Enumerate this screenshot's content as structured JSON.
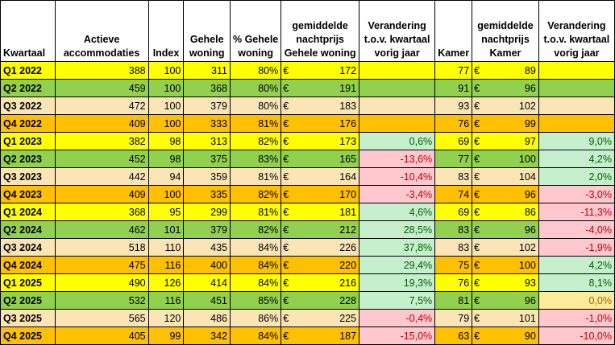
{
  "header": {
    "kwartaal": "Kwartaal",
    "actieve": "Actieve accommodaties",
    "index": "Index",
    "gehele": "Gehele woning",
    "pct_gehele": "% Gehele woning",
    "prijs_gehele": "gemiddelde nachtprijs Gehele woning",
    "verandering1": "Verandering t.o.v. kwartaal vorig jaar",
    "kamer": "Kamer",
    "prijs_kamer": "gemiddelde nachtprijs Kamer",
    "verandering2": "Verandering t.o.v. kwartaal vorig jaar"
  },
  "currency": "€",
  "colors": {
    "yellow": "#ffff00",
    "green": "#92d050",
    "light_orange": "#fbe5b6",
    "orange": "#ffc000",
    "pos_bg": "#c6efce",
    "neg_bg": "#ffc7ce",
    "zero_bg": "#ffeb9c"
  },
  "rows": [
    {
      "kwartaal": "Q1 2022",
      "actieve": "388",
      "index": "100",
      "gehele": "311",
      "pct": "80%",
      "prijs": "172",
      "ver1": "",
      "kamer": "77",
      "prijs_kamer": "89",
      "ver2": "",
      "color": "#ffff00"
    },
    {
      "kwartaal": "Q2 2022",
      "actieve": "459",
      "index": "100",
      "gehele": "368",
      "pct": "80%",
      "prijs": "191",
      "ver1": "",
      "kamer": "91",
      "prijs_kamer": "96",
      "ver2": "",
      "color": "#92d050"
    },
    {
      "kwartaal": "Q3 2022",
      "actieve": "472",
      "index": "100",
      "gehele": "379",
      "pct": "80%",
      "prijs": "183",
      "ver1": "",
      "kamer": "93",
      "prijs_kamer": "102",
      "ver2": "",
      "color": "#fbe5b6"
    },
    {
      "kwartaal": "Q4 2022",
      "actieve": "409",
      "index": "100",
      "gehele": "333",
      "pct": "81%",
      "prijs": "176",
      "ver1": "",
      "kamer": "76",
      "prijs_kamer": "99",
      "ver2": "",
      "color": "#ffc000"
    },
    {
      "kwartaal": "Q1 2023",
      "actieve": "382",
      "index": "98",
      "gehele": "313",
      "pct": "82%",
      "prijs": "173",
      "ver1": "0,6%",
      "kamer": "69",
      "prijs_kamer": "97",
      "ver2": "9,0%",
      "color": "#ffff00"
    },
    {
      "kwartaal": "Q2 2023",
      "actieve": "452",
      "index": "98",
      "gehele": "375",
      "pct": "83%",
      "prijs": "165",
      "ver1": "-13,6%",
      "kamer": "77",
      "prijs_kamer": "100",
      "ver2": "4,2%",
      "color": "#92d050"
    },
    {
      "kwartaal": "Q3 2023",
      "actieve": "442",
      "index": "94",
      "gehele": "359",
      "pct": "81%",
      "prijs": "164",
      "ver1": "-10,4%",
      "kamer": "83",
      "prijs_kamer": "104",
      "ver2": "2,0%",
      "color": "#fbe5b6"
    },
    {
      "kwartaal": "Q4 2023",
      "actieve": "409",
      "index": "100",
      "gehele": "335",
      "pct": "82%",
      "prijs": "170",
      "ver1": "-3,4%",
      "kamer": "74",
      "prijs_kamer": "96",
      "ver2": "-3,0%",
      "color": "#ffc000"
    },
    {
      "kwartaal": "Q1 2024",
      "actieve": "368",
      "index": "95",
      "gehele": "299",
      "pct": "81%",
      "prijs": "181",
      "ver1": "4,6%",
      "kamer": "69",
      "prijs_kamer": "86",
      "ver2": "-11,3%",
      "color": "#ffff00"
    },
    {
      "kwartaal": "Q2 2024",
      "actieve": "462",
      "index": "101",
      "gehele": "379",
      "pct": "82%",
      "prijs": "212",
      "ver1": "28,5%",
      "kamer": "83",
      "prijs_kamer": "96",
      "ver2": "-4,0%",
      "color": "#92d050"
    },
    {
      "kwartaal": "Q3 2024",
      "actieve": "518",
      "index": "110",
      "gehele": "435",
      "pct": "84%",
      "prijs": "226",
      "ver1": "37,8%",
      "kamer": "83",
      "prijs_kamer": "102",
      "ver2": "-1,9%",
      "color": "#fbe5b6"
    },
    {
      "kwartaal": "Q4 2024",
      "actieve": "475",
      "index": "116",
      "gehele": "400",
      "pct": "84%",
      "prijs": "220",
      "ver1": "29,4%",
      "kamer": "75",
      "prijs_kamer": "100",
      "ver2": "4,2%",
      "color": "#ffc000"
    },
    {
      "kwartaal": "Q1 2025",
      "actieve": "490",
      "index": "126",
      "gehele": "414",
      "pct": "84%",
      "prijs": "216",
      "ver1": "19,3%",
      "kamer": "76",
      "prijs_kamer": "93",
      "ver2": "8,1%",
      "color": "#ffff00"
    },
    {
      "kwartaal": "Q2 2025",
      "actieve": "532",
      "index": "116",
      "gehele": "451",
      "pct": "85%",
      "prijs": "228",
      "ver1": "7,5%",
      "kamer": "81",
      "prijs_kamer": "96",
      "ver2": "0,0%",
      "color": "#92d050"
    },
    {
      "kwartaal": "Q3 2025",
      "actieve": "565",
      "index": "120",
      "gehele": "486",
      "pct": "86%",
      "prijs": "225",
      "ver1": "-0,4%",
      "kamer": "79",
      "prijs_kamer": "101",
      "ver2": "-1,0%",
      "color": "#fbe5b6"
    },
    {
      "kwartaal": "Q4 2025",
      "actieve": "405",
      "index": "99",
      "gehele": "342",
      "pct": "84%",
      "prijs": "187",
      "ver1": "-15,0%",
      "kamer": "63",
      "prijs_kamer": "90",
      "ver2": "-10,0%",
      "color": "#ffc000"
    }
  ]
}
